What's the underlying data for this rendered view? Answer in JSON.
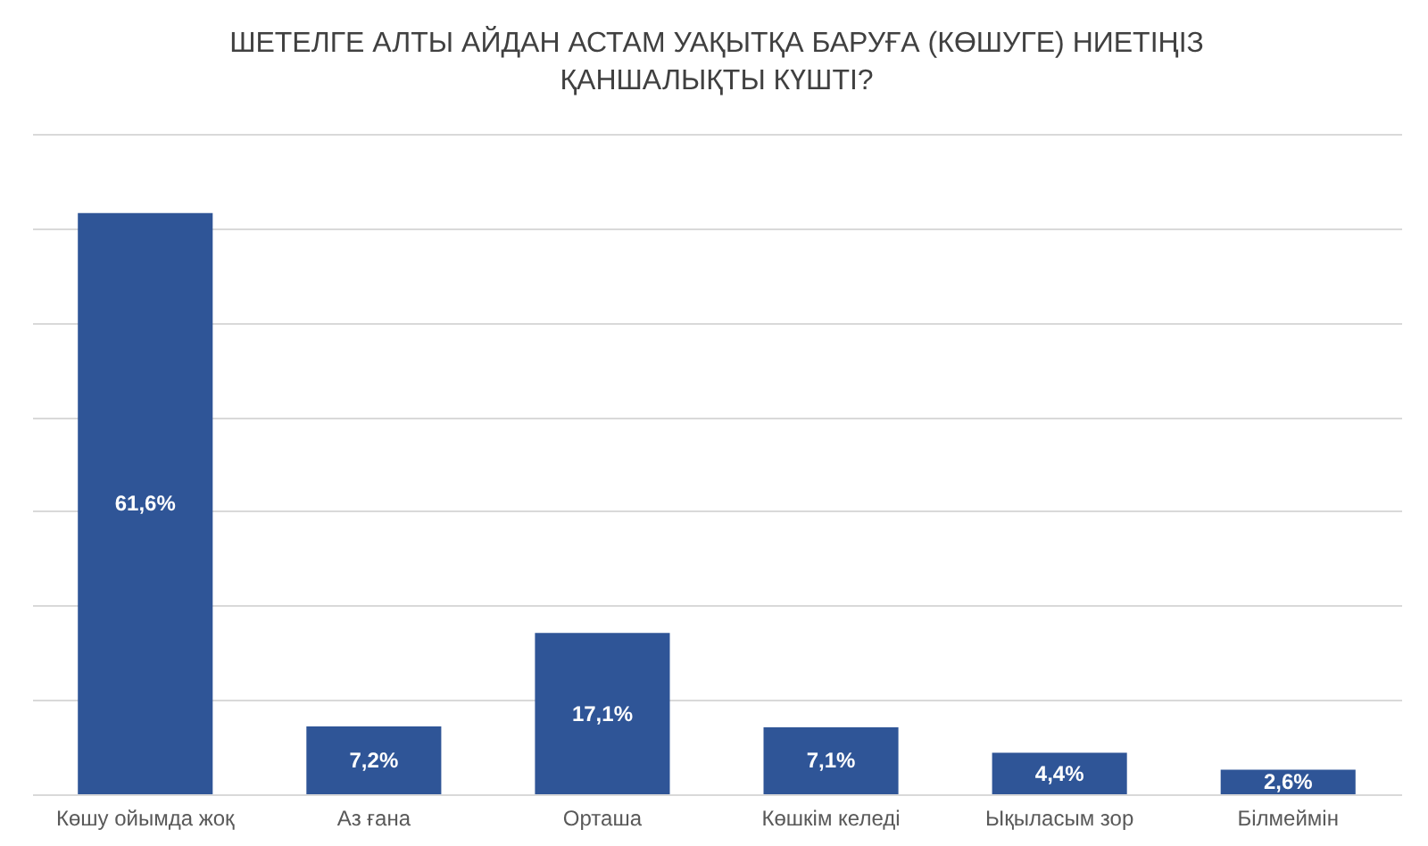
{
  "chart_data": {
    "type": "bar",
    "title": "ШЕТЕЛГЕ АЛТЫ АЙДАН АСТАМ УАҚЫТҚА БАРУҒА (КӨШУГЕ) НИЕТІҢІЗ ҚАНШАЛЫҚТЫ КҮШТІ?",
    "categories": [
      "Көшу ойымда жоқ",
      "Аз ғана",
      "Орташа",
      "Көшкім келеді",
      "Ықыласым зор",
      "Білмеймін"
    ],
    "values": [
      61.6,
      7.2,
      17.1,
      7.1,
      4.4,
      2.6
    ],
    "value_labels": [
      "61,6%",
      "7,2%",
      "17,1%",
      "7,1%",
      "4,4%",
      "2,6%"
    ],
    "color": "#2f5597",
    "ylim": [
      0,
      70
    ],
    "yticks": [
      {
        "value": 0,
        "label": null
      },
      {
        "value": 10,
        "label": null
      },
      {
        "value": 20,
        "label": null
      },
      {
        "value": 30,
        "label": null
      },
      {
        "value": 40,
        "label": null
      },
      {
        "value": 50,
        "label": null
      },
      {
        "value": 60,
        "label": null
      },
      {
        "value": 70,
        "label": null
      }
    ],
    "tick_labels": "x",
    "grid": "y"
  }
}
